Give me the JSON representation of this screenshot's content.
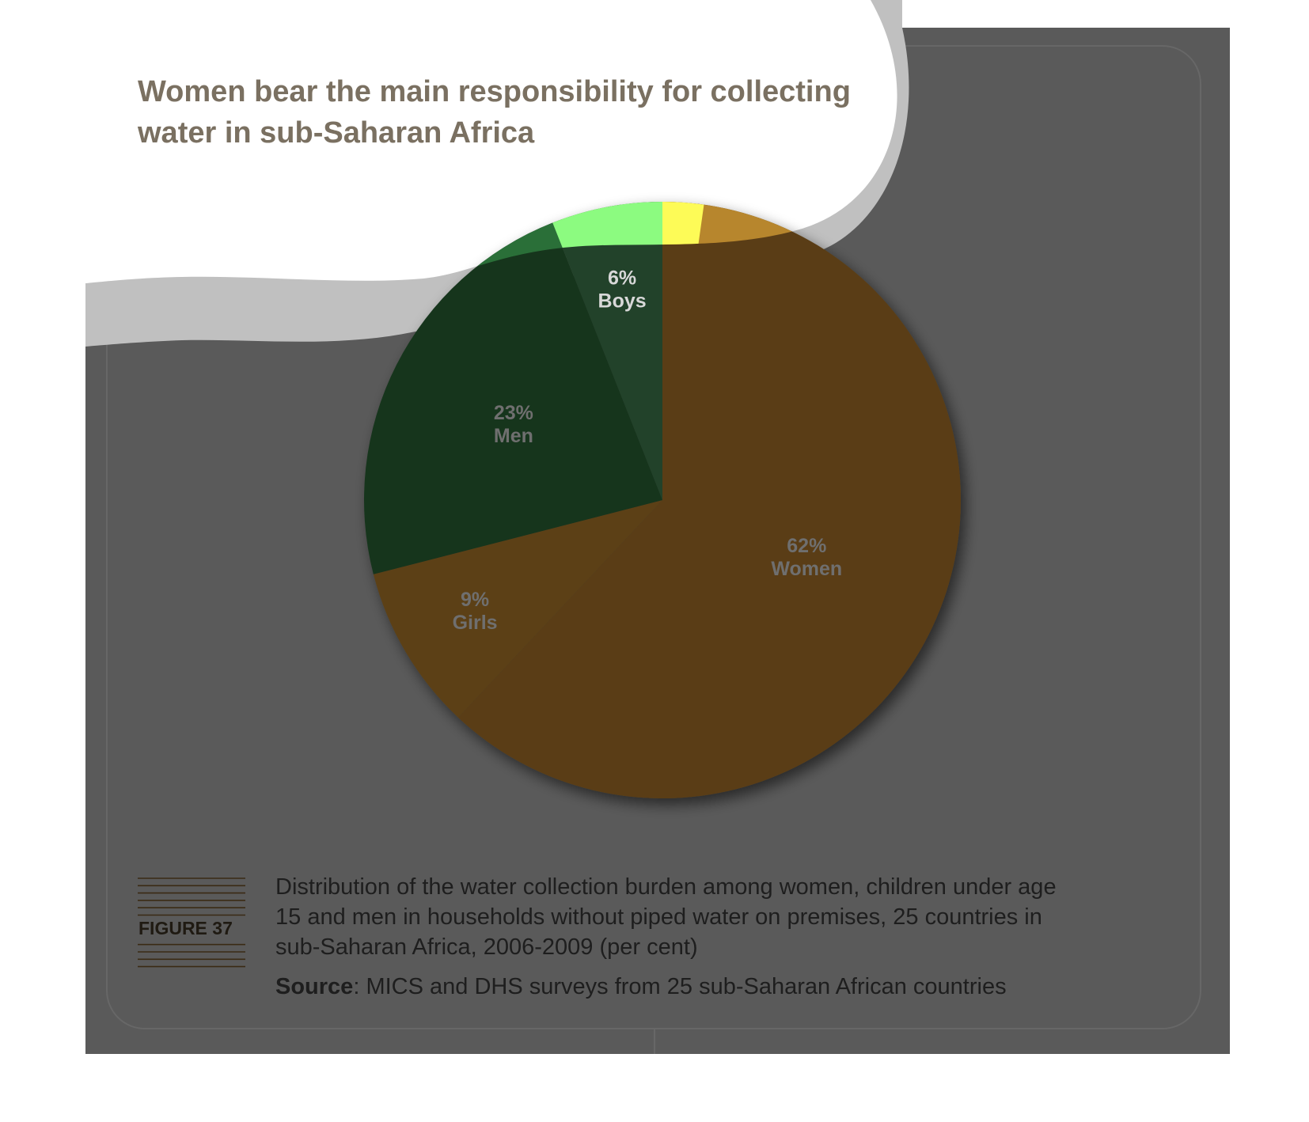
{
  "title_lines": [
    "Women bear the main responsibility for collecting",
    "water in sub-Saharan Africa"
  ],
  "figure_label": "FIGURE 37",
  "caption_lines": [
    "Distribution of the water collection burden among women, children under age",
    "15 and men in households without piped water on premises, 25 countries in",
    "sub-Saharan Africa, 2006-2009 (per cent)"
  ],
  "source": {
    "label": "Source",
    "text": ": MICS and DHS surveys from 25 sub-Saharan African countries"
  },
  "colors": {
    "women": "#5a3e17",
    "girls": "#5b4017",
    "men": "#16341c",
    "boys": "#234229",
    "women_top": "#b7862d",
    "boys_top": "#8cfb80",
    "men_top": "#2a6f38",
    "men_edge": "#54dc75",
    "yellow": "#fdfb57",
    "background_dark": "#5a5a5a",
    "title_color": "#7a7061"
  },
  "chart_data": {
    "type": "pie",
    "title": "Women bear the main responsibility for collecting water in sub-Saharan Africa",
    "slices": [
      {
        "key": "women",
        "label": "Women",
        "value": 62,
        "value_label": "62%"
      },
      {
        "key": "girls",
        "label": "Girls",
        "value": 9,
        "value_label": "9%"
      },
      {
        "key": "men",
        "label": "Men",
        "value": 23,
        "value_label": "23%"
      },
      {
        "key": "boys",
        "label": "Boys",
        "value": 6,
        "value_label": "6%"
      }
    ],
    "start": "12 o'clock",
    "direction": "clockwise",
    "legend": "none (labels inside slices)"
  }
}
